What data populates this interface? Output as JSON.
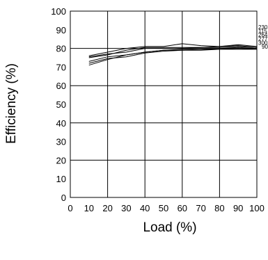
{
  "chart_data": {
    "type": "line",
    "xlabel": "Load (%)",
    "ylabel": "Efficiency (%)",
    "xlim": [
      0,
      100
    ],
    "ylim": [
      0,
      100
    ],
    "xticks": [
      0,
      10,
      20,
      30,
      40,
      50,
      60,
      70,
      80,
      90,
      100
    ],
    "yticks": [
      0,
      10,
      20,
      30,
      40,
      50,
      60,
      70,
      80,
      90,
      100
    ],
    "grid": true,
    "x": [
      10,
      20,
      30,
      40,
      50,
      60,
      70,
      80,
      90,
      100
    ],
    "series": [
      {
        "name": "230",
        "values": [
          76,
          78,
          80,
          81,
          81,
          82.5,
          81.5,
          81,
          82,
          81
        ]
      },
      {
        "name": "115",
        "values": [
          75,
          76.5,
          79,
          80.5,
          80.5,
          80.5,
          80.5,
          81,
          81.5,
          80.5
        ]
      },
      {
        "name": "264",
        "values": [
          75.5,
          77,
          78,
          80,
          80,
          80,
          80.5,
          80.5,
          81,
          80.5
        ]
      },
      {
        "name": "277",
        "values": [
          73,
          75.5,
          76.5,
          78,
          79,
          79.5,
          79.5,
          80,
          80.5,
          80
        ]
      },
      {
        "name": "300",
        "values": [
          72,
          74.5,
          75.5,
          77.5,
          78.5,
          79,
          79.5,
          79.5,
          80,
          79.5
        ]
      },
      {
        "name": "90",
        "values": [
          71,
          74,
          76.5,
          78,
          79,
          79,
          79,
          79.5,
          79.5,
          79.5
        ]
      }
    ]
  }
}
